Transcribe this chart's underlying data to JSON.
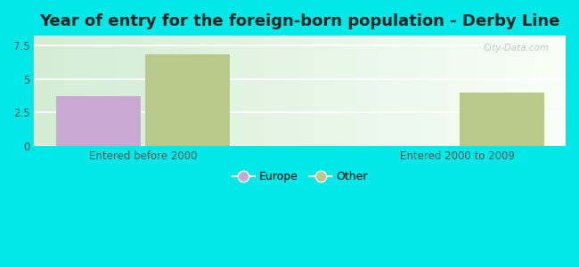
{
  "title": "Year of entry for the foreign-born population - Derby Line",
  "groups": [
    "Entered before 2000",
    "Entered 2000 to 2009"
  ],
  "series": [
    {
      "name": "Europe",
      "values": [
        3.7,
        0
      ],
      "color": "#c9a8d4"
    },
    {
      "name": "Other",
      "values": [
        6.8,
        4.0
      ],
      "color": "#b8c98a"
    }
  ],
  "ylim": [
    0,
    8.2
  ],
  "yticks": [
    0,
    2.5,
    5,
    7.5
  ],
  "background_outer": "#00e8e8",
  "background_plot_left": "#d4ecd4",
  "background_plot_right": "#f8fff8",
  "bar_width": 0.35,
  "title_fontsize": 13,
  "tick_fontsize": 8.5,
  "legend_fontsize": 9,
  "watermark": "City-Data.com"
}
